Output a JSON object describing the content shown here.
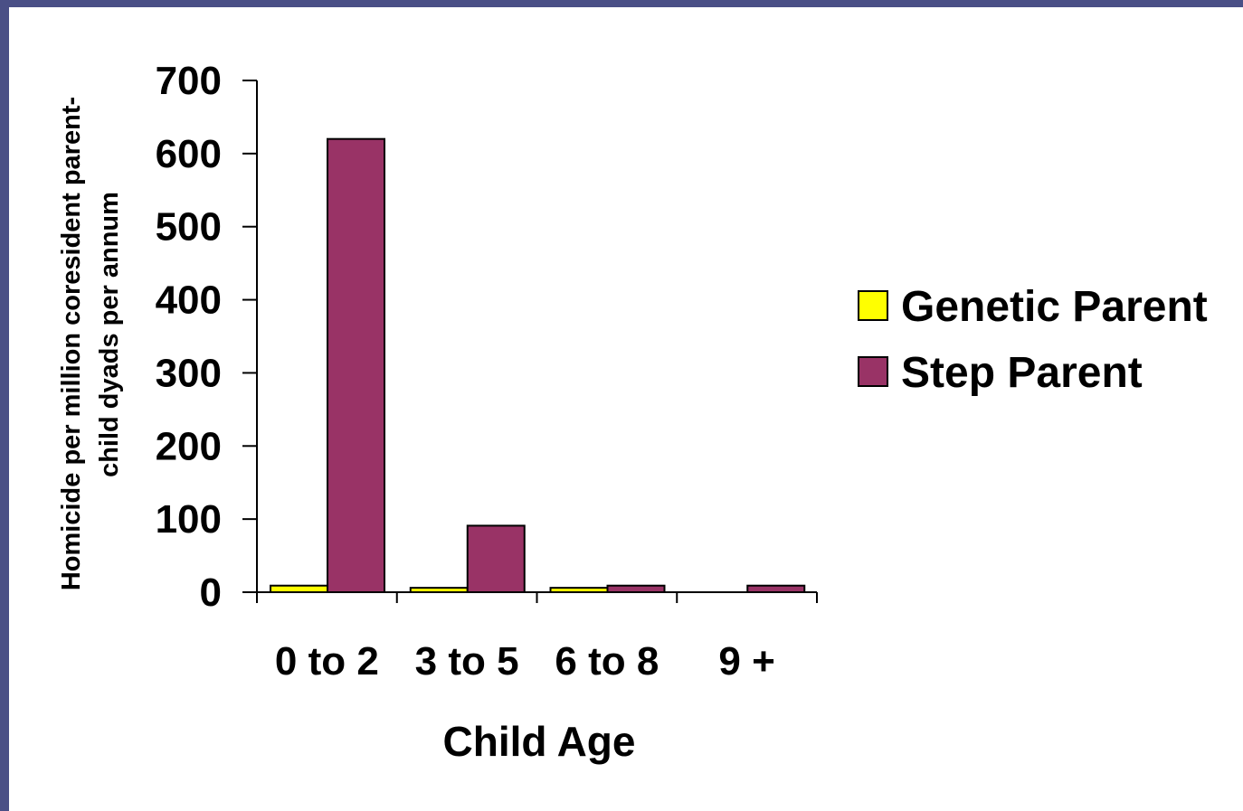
{
  "chart_data": {
    "type": "bar",
    "categories": [
      "0 to 2",
      "3 to 5",
      "6 to 8",
      "9 +"
    ],
    "series": [
      {
        "name": "Genetic Parent",
        "values": [
          9,
          6,
          6,
          0
        ],
        "color": "#ffff00"
      },
      {
        "name": "Step Parent",
        "values": [
          620,
          91,
          9,
          9
        ],
        "color": "#993366"
      }
    ],
    "ylim": [
      0,
      700
    ],
    "yticks": [
      "0",
      "100",
      "200",
      "300",
      "400",
      "500",
      "600",
      "700"
    ],
    "xlabel": "Child Age",
    "ylabel_line1": "Homicide per million coresident parent-",
    "ylabel_line2": "child dyads per annum",
    "legend_position": "right",
    "grid": false
  }
}
